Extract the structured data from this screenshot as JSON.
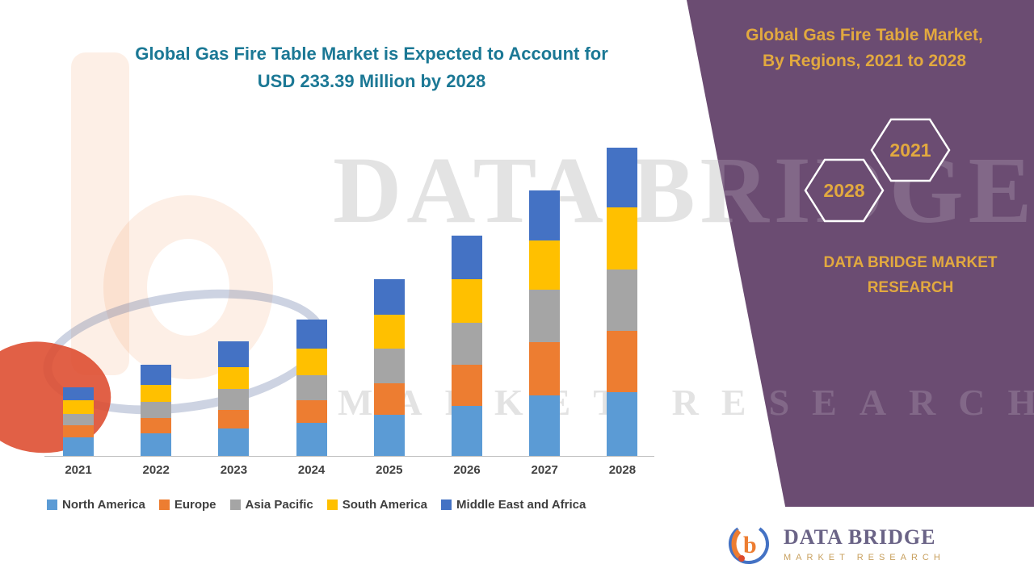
{
  "title": {
    "line1": "Global Gas Fire Table Market is Expected to Account for",
    "line2": "USD 233.39 Million by 2028"
  },
  "side_panel": {
    "heading_line1": "Global Gas Fire Table Market,",
    "heading_line2": "By Regions, 2021 to 2028",
    "hexagon_back_label": "2021",
    "hexagon_front_label": "2028",
    "brand_line1": "DATA BRIDGE MARKET",
    "brand_line2": "RESEARCH"
  },
  "watermark": {
    "line1": "DATA BRIDGE",
    "line2": "MARKET RESEARCH"
  },
  "footer": {
    "brand": "DATA BRIDGE",
    "subtitle": "MARKET RESEARCH",
    "logo_glyph": "b"
  },
  "colors": {
    "title_teal": "#1B7895",
    "panel_purple": "#6B4C72",
    "gold": "#E2A93F",
    "axis_text": "#404040",
    "baseline": "#BFBFBF"
  },
  "chart_data": {
    "type": "bar",
    "stacked": true,
    "title": "Global Gas Fire Table Market is Expected to Account for USD 233.39 Million by 2028",
    "unit": "USD Million",
    "categories": [
      "2021",
      "2022",
      "2023",
      "2024",
      "2025",
      "2026",
      "2027",
      "2028"
    ],
    "series": [
      {
        "name": "North America",
        "color": "#5B9BD5",
        "values": [
          14,
          17,
          21,
          25,
          31,
          38,
          46,
          48
        ]
      },
      {
        "name": "Europe",
        "color": "#ED7D31",
        "values": [
          9,
          12,
          14,
          17,
          24,
          31,
          40,
          47
        ]
      },
      {
        "name": "Asia Pacific",
        "color": "#A5A5A5",
        "values": [
          9,
          12,
          16,
          19,
          26,
          32,
          40,
          46
        ]
      },
      {
        "name": "South America",
        "color": "#FFC000",
        "values": [
          10,
          13,
          16,
          20,
          26,
          33,
          37,
          47
        ]
      },
      {
        "name": "Middle East and Africa",
        "color": "#4472C4",
        "values": [
          10,
          15,
          20,
          22,
          27,
          33,
          38,
          45.39
        ]
      }
    ],
    "highlight_total_2028": 233.39,
    "ylim": [
      0,
      240
    ],
    "gridlines": false,
    "legend_position": "bottom"
  }
}
